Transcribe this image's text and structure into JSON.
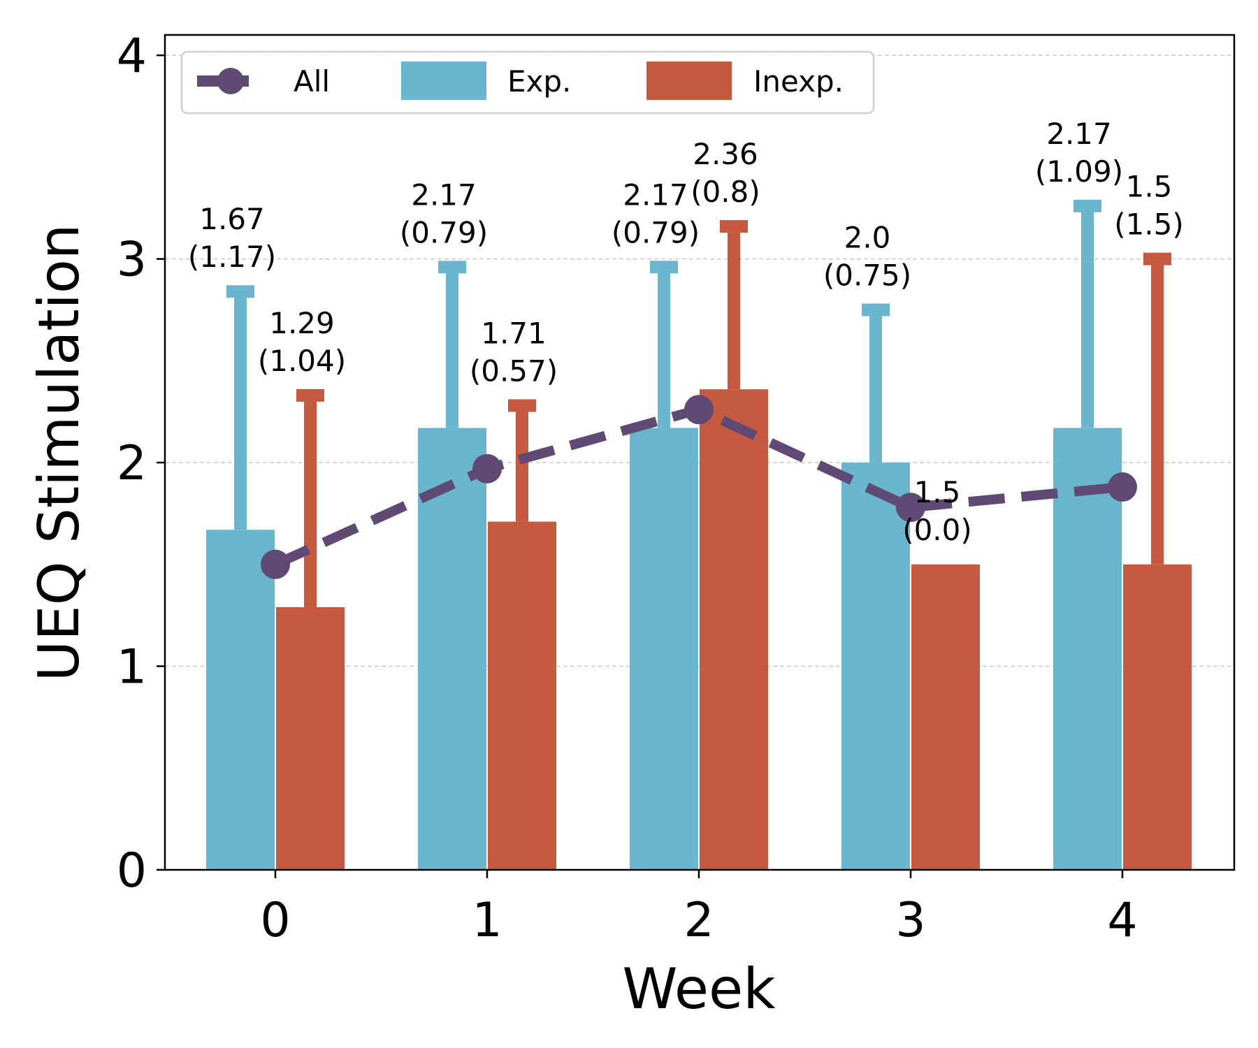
{
  "chart_data": {
    "type": "bar",
    "xlabel": "Week",
    "ylabel": "UEQ Stimulation",
    "categories": [
      "0",
      "1",
      "2",
      "3",
      "4"
    ],
    "ylim": [
      0,
      4.1
    ],
    "yticks": [
      "0",
      "1",
      "2",
      "3",
      "4"
    ],
    "grid": "horizontal dashed",
    "legend_position": "top-left",
    "colors": {
      "all": "#5e4a72",
      "exp": "#6bb6cf",
      "inexp": "#c65a40"
    },
    "series": [
      {
        "name": "All",
        "kind": "line",
        "values": [
          1.5,
          1.97,
          2.26,
          1.78,
          1.88
        ]
      },
      {
        "name": "Exp.",
        "kind": "bar",
        "values": [
          1.67,
          2.17,
          2.17,
          2.0,
          2.17
        ],
        "errors": [
          1.17,
          0.79,
          0.79,
          0.75,
          1.09
        ],
        "labels": [
          [
            "1.67",
            "(1.17)"
          ],
          [
            "2.17",
            "(0.79)"
          ],
          [
            "2.17",
            "(0.79)"
          ],
          [
            "2.0",
            "(0.75)"
          ],
          [
            "2.17",
            "(1.09)"
          ]
        ]
      },
      {
        "name": "Inexp.",
        "kind": "bar",
        "values": [
          1.29,
          1.71,
          2.36,
          1.5,
          1.5
        ],
        "errors": [
          1.04,
          0.57,
          0.8,
          0.0,
          1.5
        ],
        "labels": [
          [
            "1.29",
            "(1.04)"
          ],
          [
            "1.71",
            "(0.57)"
          ],
          [
            "2.36",
            "(0.8)"
          ],
          [
            "1.5",
            "(0.0)"
          ],
          [
            "1.5",
            "(1.5)"
          ]
        ]
      }
    ],
    "legend": [
      "All",
      "Exp.",
      "Inexp."
    ]
  }
}
